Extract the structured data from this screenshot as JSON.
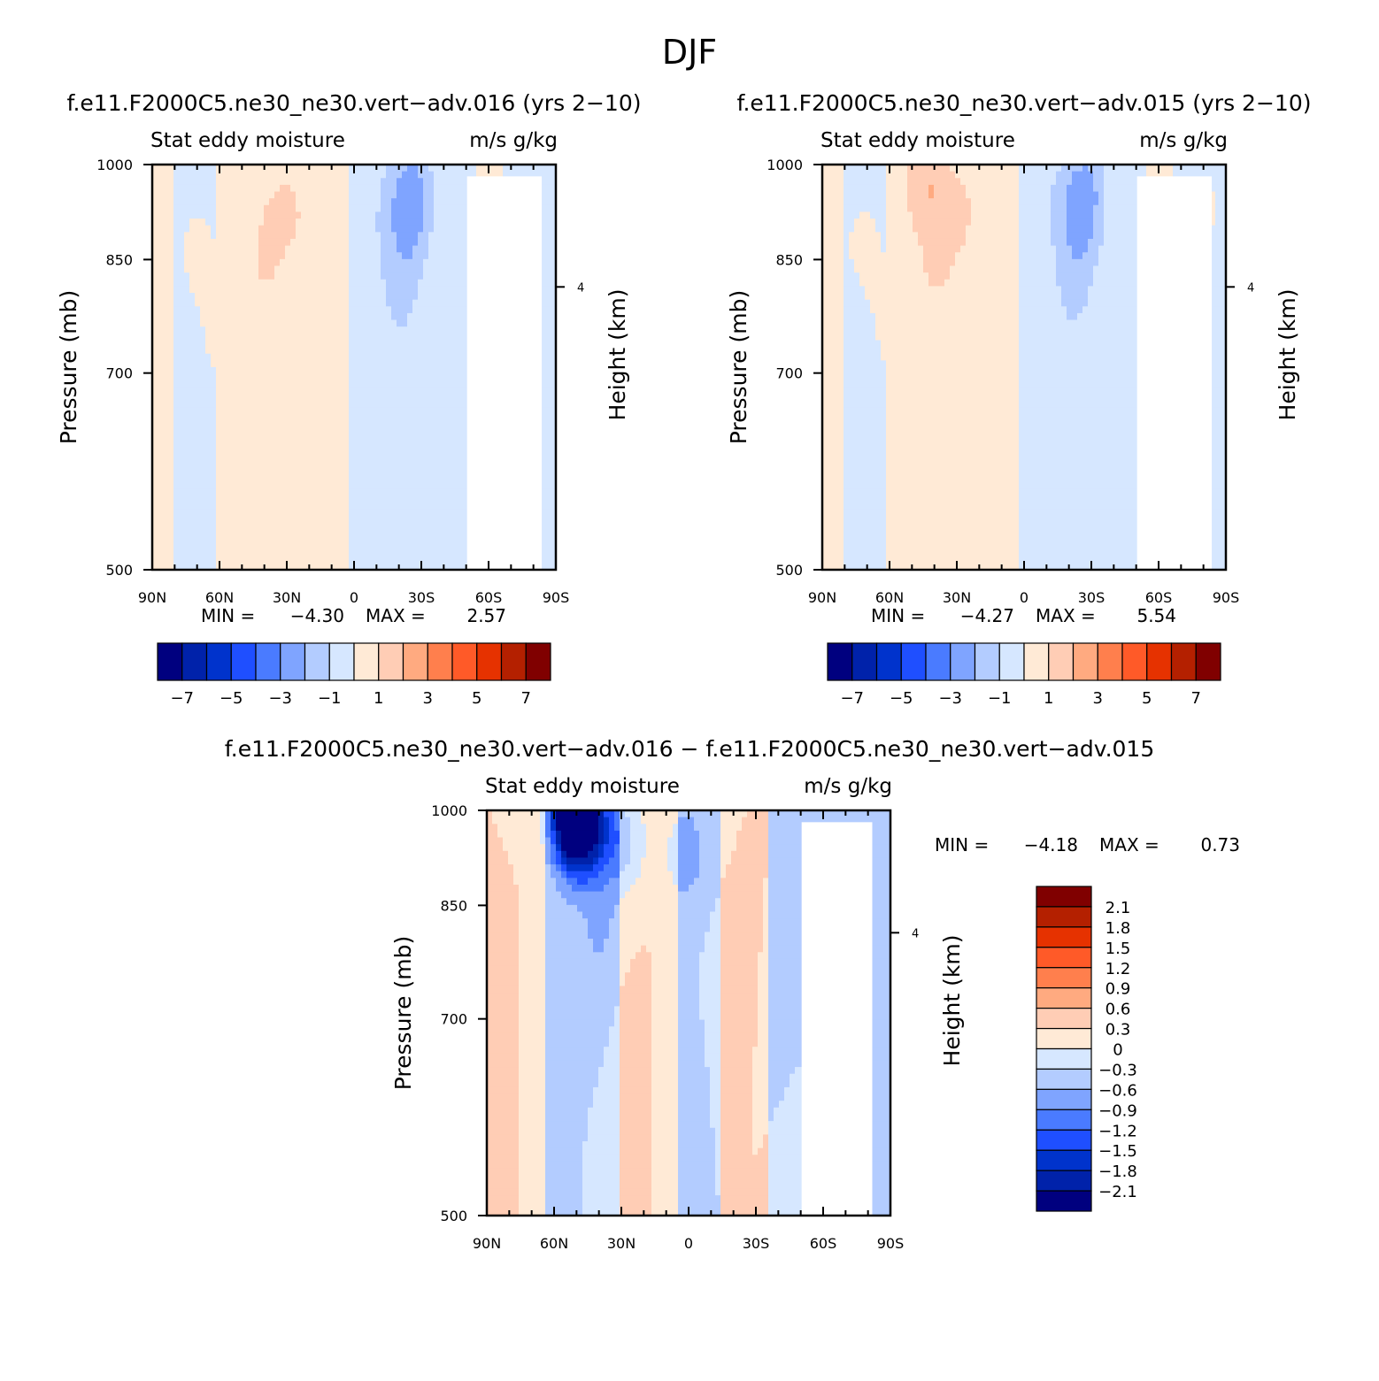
{
  "figure": {
    "title": "DJF"
  },
  "colors": {
    "blues": [
      "#00007f",
      "#0022aa",
      "#0033cc",
      "#1f4fff",
      "#4a7bff",
      "#7fa4ff",
      "#b3ccff",
      "#d6e7ff"
    ],
    "reds": [
      "#ffead6",
      "#ffcdb5",
      "#ffaa80",
      "#ff7f4d",
      "#ff5a28",
      "#e63200",
      "#b42000",
      "#800000"
    ],
    "line": "#000000"
  },
  "chart_data": [
    {
      "type": "heatmap",
      "name": "panel-top-left",
      "title": "f.e11.F2000C5.ne30_ne30.vert−adv.016 (yrs 2−10)",
      "subtitle_left": "Stat eddy moisture",
      "subtitle_right": "m/s g/kg",
      "ylabel": "Pressure (mb)",
      "ylabel_right": "Height (km)",
      "y_ticks": [
        "500",
        "700",
        "850",
        "1000"
      ],
      "y_tick_values": [
        500,
        700,
        850,
        1000
      ],
      "ylim": [
        1000,
        500
      ],
      "y_right_ticks": [
        "4"
      ],
      "x_ticks": [
        "90N",
        "60N",
        "30N",
        "0",
        "30S",
        "60S",
        "90S"
      ],
      "xlim": [
        90,
        -90
      ],
      "min_label": "MIN =",
      "min_value": "−4.30",
      "max_label": "MAX =",
      "max_value": "2.57",
      "colorbar": {
        "orientation": "horizontal",
        "labels": [
          "−7",
          "−5",
          "−3",
          "−1",
          "1",
          "3",
          "5",
          "7"
        ]
      },
      "features": [
        {
          "x": -26,
          "p": 960,
          "v": -3.6
        },
        {
          "x": -24,
          "p": 900,
          "v": -2.4
        },
        {
          "x": -20,
          "p": 820,
          "v": -1.4
        },
        {
          "x": -22,
          "p": 740,
          "v": -0.7
        },
        {
          "x": -12,
          "p": 930,
          "v": -1.0
        },
        {
          "x": -6,
          "p": 800,
          "v": -0.4
        },
        {
          "x": 42,
          "p": 800,
          "v": 0.9
        },
        {
          "x": 38,
          "p": 880,
          "v": 1.3
        },
        {
          "x": 30,
          "p": 930,
          "v": 1.6
        },
        {
          "x": 15,
          "p": 900,
          "v": 1.0
        },
        {
          "x": 45,
          "p": 650,
          "v": 0.5
        },
        {
          "x": 60,
          "p": 750,
          "v": 0.4
        },
        {
          "x": 70,
          "p": 850,
          "v": 0.5
        },
        {
          "x": 80,
          "p": 600,
          "v": 0.3
        },
        {
          "x": 80,
          "p": 750,
          "v": -0.3
        },
        {
          "x": 55,
          "p": 550,
          "v": 0.3
        },
        {
          "x": 10,
          "p": 600,
          "v": 0.3
        },
        {
          "x": -50,
          "p": 700,
          "v": -0.3
        },
        {
          "x": -72,
          "p": 600,
          "v": -0.3
        },
        {
          "x": -80,
          "p": 930,
          "v": 0.4
        },
        {
          "x": -84,
          "p": 820,
          "v": -0.3
        }
      ]
    },
    {
      "type": "heatmap",
      "name": "panel-top-right",
      "title": "f.e11.F2000C5.ne30_ne30.vert−adv.015 (yrs 2−10)",
      "subtitle_left": "Stat eddy moisture",
      "subtitle_right": "m/s g/kg",
      "ylabel": "Pressure (mb)",
      "ylabel_right": "Height (km)",
      "y_ticks": [
        "500",
        "700",
        "850",
        "1000"
      ],
      "y_tick_values": [
        500,
        700,
        850,
        1000
      ],
      "ylim": [
        1000,
        500
      ],
      "y_right_ticks": [
        "4"
      ],
      "x_ticks": [
        "90N",
        "60N",
        "30N",
        "0",
        "30S",
        "60S",
        "90S"
      ],
      "xlim": [
        90,
        -90
      ],
      "min_label": "MIN =",
      "min_value": "−4.27",
      "max_label": "MAX =",
      "max_value": "5.54",
      "colorbar": {
        "orientation": "horizontal",
        "labels": [
          "−7",
          "−5",
          "−3",
          "−1",
          "1",
          "3",
          "5",
          "7"
        ]
      },
      "features": [
        {
          "x": -27,
          "p": 960,
          "v": -3.5
        },
        {
          "x": -25,
          "p": 900,
          "v": -2.3
        },
        {
          "x": -22,
          "p": 830,
          "v": -1.4
        },
        {
          "x": -22,
          "p": 740,
          "v": -0.7
        },
        {
          "x": -12,
          "p": 940,
          "v": -1.0
        },
        {
          "x": -6,
          "p": 810,
          "v": -0.4
        },
        {
          "x": 40,
          "p": 820,
          "v": 1.0
        },
        {
          "x": 38,
          "p": 900,
          "v": 1.5
        },
        {
          "x": 45,
          "p": 980,
          "v": 3.0
        },
        {
          "x": 30,
          "p": 930,
          "v": 1.6
        },
        {
          "x": 15,
          "p": 900,
          "v": 1.0
        },
        {
          "x": 42,
          "p": 680,
          "v": 0.5
        },
        {
          "x": 60,
          "p": 760,
          "v": 0.4
        },
        {
          "x": 72,
          "p": 860,
          "v": 0.5
        },
        {
          "x": 80,
          "p": 600,
          "v": 0.3
        },
        {
          "x": 80,
          "p": 760,
          "v": -0.3
        },
        {
          "x": 55,
          "p": 550,
          "v": 0.3
        },
        {
          "x": 10,
          "p": 620,
          "v": 0.3
        },
        {
          "x": -50,
          "p": 700,
          "v": -0.3
        },
        {
          "x": -72,
          "p": 600,
          "v": -0.3
        },
        {
          "x": -80,
          "p": 930,
          "v": 0.4
        },
        {
          "x": -88,
          "p": 700,
          "v": 0.3
        }
      ]
    },
    {
      "type": "heatmap",
      "name": "panel-difference",
      "title": "f.e11.F2000C5.ne30_ne30.vert−adv.016 − f.e11.F2000C5.ne30_ne30.vert−adv.015",
      "subtitle_left": "Stat eddy moisture",
      "subtitle_right": "m/s g/kg",
      "ylabel": "Pressure (mb)",
      "ylabel_right": "Height (km)",
      "y_ticks": [
        "500",
        "700",
        "850",
        "1000"
      ],
      "y_tick_values": [
        500,
        700,
        850,
        1000
      ],
      "ylim": [
        1000,
        500
      ],
      "y_right_ticks": [
        "4"
      ],
      "x_ticks": [
        "90N",
        "60N",
        "30N",
        "0",
        "30S",
        "60S",
        "90S"
      ],
      "xlim": [
        90,
        -90
      ],
      "min_label": "MIN =",
      "min_value": "−4.18",
      "max_label": "MAX =",
      "max_value": "0.73",
      "colorbar": {
        "orientation": "vertical",
        "labels": [
          "2.1",
          "1.8",
          "1.5",
          "1.2",
          "0.9",
          "0.6",
          "0.3",
          "0",
          "−0.3",
          "−0.6",
          "−0.9",
          "−1.2",
          "−1.5",
          "−1.8",
          "−2.1"
        ]
      },
      "features": [
        {
          "x": 52,
          "p": 995,
          "v": -2.5
        },
        {
          "x": 48,
          "p": 980,
          "v": -1.0
        },
        {
          "x": 40,
          "p": 960,
          "v": -0.7
        },
        {
          "x": 28,
          "p": 950,
          "v": -0.6
        },
        {
          "x": 70,
          "p": 700,
          "v": -0.3
        },
        {
          "x": 40,
          "p": 800,
          "v": -0.3
        },
        {
          "x": 10,
          "p": 650,
          "v": -0.3
        },
        {
          "x": -40,
          "p": 720,
          "v": -0.3
        },
        {
          "x": -62,
          "p": 650,
          "v": -0.3
        },
        {
          "x": 82,
          "p": 700,
          "v": 0.3
        },
        {
          "x": 22,
          "p": 650,
          "v": 0.3
        },
        {
          "x": -22,
          "p": 750,
          "v": 0.3
        },
        {
          "x": -52,
          "p": 560,
          "v": 0.3
        },
        {
          "x": -82,
          "p": 800,
          "v": -0.3
        },
        {
          "x": 2,
          "p": 930,
          "v": -0.5
        }
      ]
    }
  ]
}
